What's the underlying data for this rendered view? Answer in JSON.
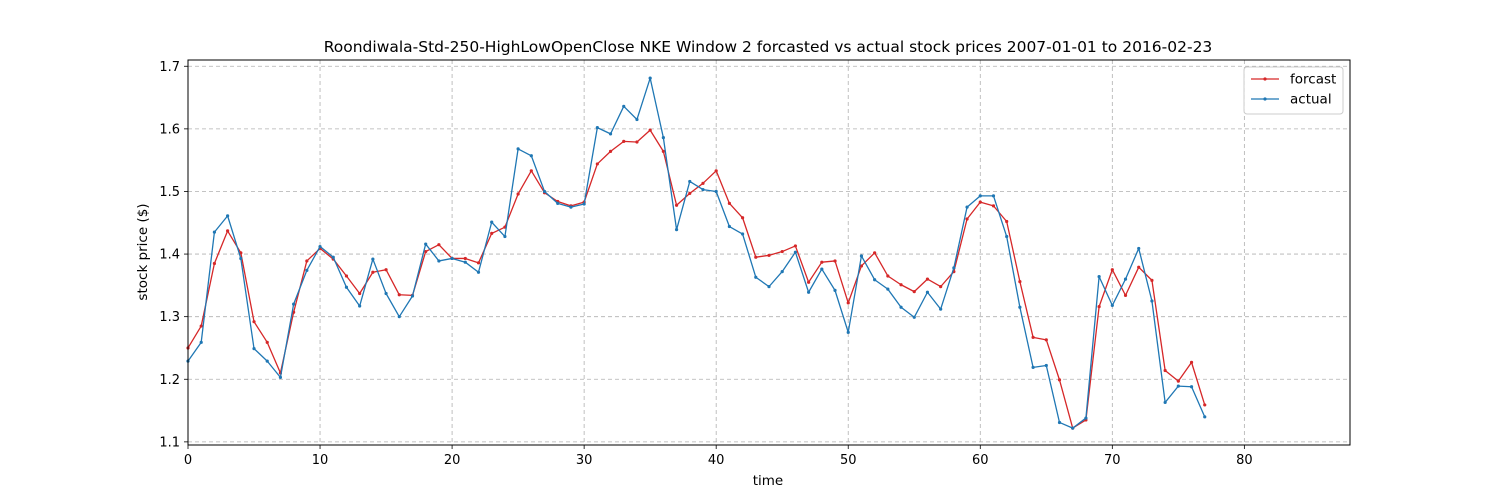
{
  "chart_data": {
    "type": "line",
    "title": "Roondiwala-Std-250-HighLowOpenClose NKE Window 2 forcasted vs actual stock prices 2007-01-01 to 2016-02-23",
    "xlabel": "time",
    "ylabel": "stock price ($)",
    "xlim": [
      0,
      88
    ],
    "ylim": [
      1.095,
      1.71
    ],
    "xticks": [
      0,
      10,
      20,
      30,
      40,
      50,
      60,
      70,
      80
    ],
    "yticks": [
      1.1,
      1.2,
      1.3,
      1.4,
      1.5,
      1.6,
      1.7
    ],
    "xtick_labels": [
      "0",
      "10",
      "20",
      "30",
      "40",
      "50",
      "60",
      "70",
      "80"
    ],
    "ytick_labels": [
      "1.1",
      "1.2",
      "1.3",
      "1.4",
      "1.5",
      "1.6",
      "1.7"
    ],
    "grid": true,
    "legend_position": "top-right",
    "series": [
      {
        "name": "forcast",
        "color": "#d62728",
        "values": [
          1.25,
          1.285,
          1.385,
          1.437,
          1.402,
          1.292,
          1.259,
          1.21,
          1.307,
          1.389,
          1.409,
          1.392,
          1.365,
          1.337,
          1.371,
          1.375,
          1.335,
          1.334,
          1.404,
          1.415,
          1.393,
          1.393,
          1.386,
          1.433,
          1.443,
          1.496,
          1.533,
          1.498,
          1.484,
          1.477,
          1.483,
          1.544,
          1.564,
          1.58,
          1.579,
          1.598,
          1.564,
          1.478,
          1.497,
          1.513,
          1.533,
          1.481,
          1.458,
          1.395,
          1.398,
          1.404,
          1.413,
          1.355,
          1.387,
          1.389,
          1.322,
          1.381,
          1.402,
          1.365,
          1.351,
          1.34,
          1.36,
          1.348,
          1.372,
          1.456,
          1.483,
          1.477,
          1.452,
          1.356,
          1.267,
          1.263,
          1.199,
          1.122,
          1.135,
          1.316,
          1.375,
          1.334,
          1.379,
          1.358,
          1.214,
          1.197,
          1.227,
          1.159
        ]
      },
      {
        "name": "actual",
        "color": "#1f77b4",
        "values": [
          1.229,
          1.259,
          1.435,
          1.461,
          1.393,
          1.249,
          1.229,
          1.203,
          1.32,
          1.374,
          1.412,
          1.395,
          1.347,
          1.317,
          1.392,
          1.337,
          1.3,
          1.333,
          1.416,
          1.389,
          1.393,
          1.387,
          1.371,
          1.451,
          1.428,
          1.568,
          1.557,
          1.5,
          1.481,
          1.475,
          1.48,
          1.602,
          1.592,
          1.636,
          1.615,
          1.681,
          1.586,
          1.439,
          1.516,
          1.503,
          1.5,
          1.444,
          1.432,
          1.363,
          1.348,
          1.372,
          1.403,
          1.339,
          1.376,
          1.342,
          1.275,
          1.397,
          1.359,
          1.344,
          1.315,
          1.299,
          1.339,
          1.312,
          1.378,
          1.475,
          1.493,
          1.493,
          1.428,
          1.315,
          1.219,
          1.222,
          1.131,
          1.122,
          1.138,
          1.364,
          1.318,
          1.36,
          1.409,
          1.325,
          1.163,
          1.189,
          1.188,
          1.14
        ]
      }
    ]
  }
}
